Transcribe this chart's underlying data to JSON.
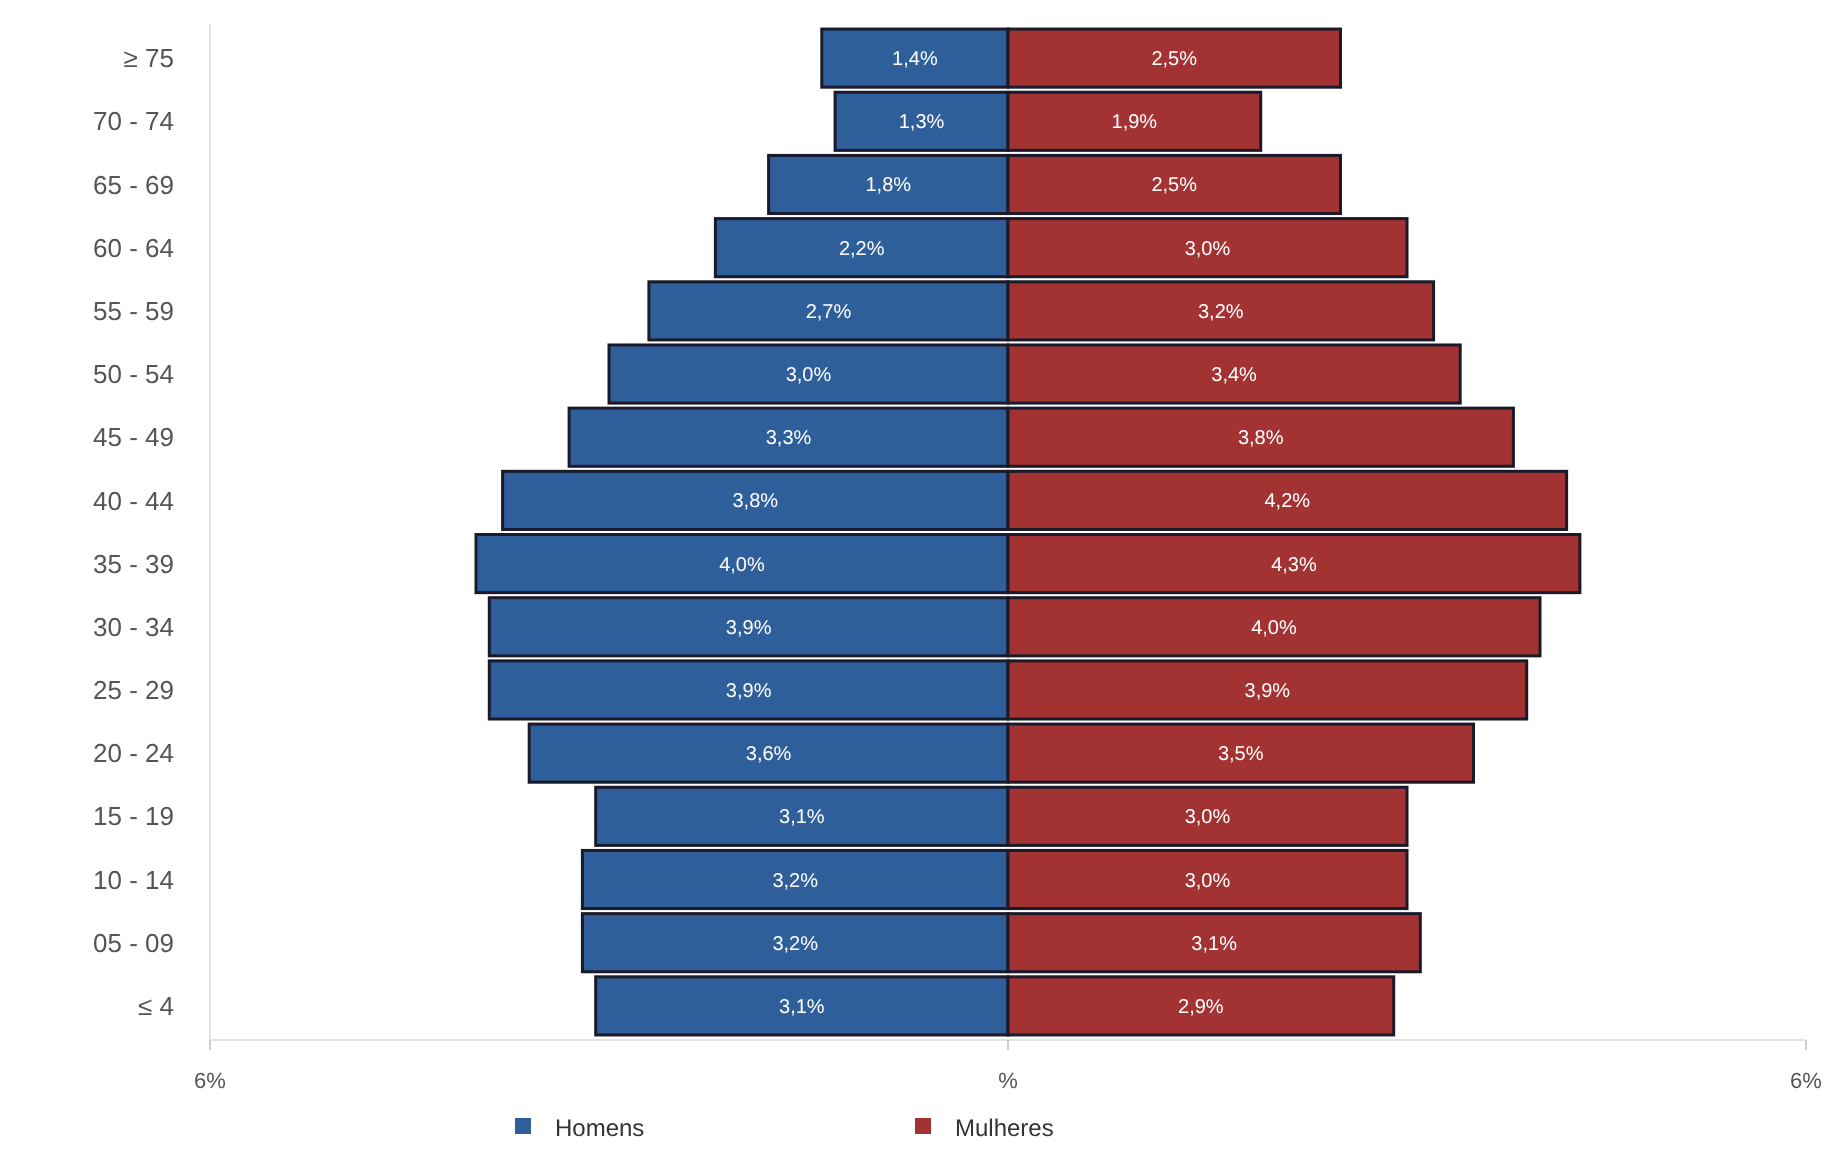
{
  "chart_data": {
    "type": "bar",
    "orientation": "horizontal",
    "categories": [
      "≥ 75",
      "70 - 74",
      "65 - 69",
      "60 - 64",
      "55 - 59",
      "50 - 54",
      "45 - 49",
      "40 - 44",
      "35 - 39",
      "30 - 34",
      "25 - 29",
      "20 - 24",
      "15 - 19",
      "10 - 14",
      "05 - 09",
      "≤ 4"
    ],
    "series": [
      {
        "name": "Homens",
        "color": "#2f5f9a",
        "base": [
          -1.4,
          -1.3,
          -1.8,
          -2.2,
          -2.7,
          -3.0,
          -3.3,
          -3.8,
          -4.0,
          -3.9,
          -3.9,
          -3.6,
          -3.1,
          -3.2,
          -3.2,
          -3.1
        ],
        "values": [
          1.4,
          1.3,
          1.8,
          2.2,
          2.7,
          3.0,
          3.3,
          3.8,
          4.0,
          3.9,
          3.9,
          3.6,
          3.1,
          3.2,
          3.2,
          3.1
        ],
        "value_labels": [
          "1,4%",
          "1,3%",
          "1,8%",
          "2,2%",
          "2,7%",
          "3,0%",
          "3,3%",
          "3,8%",
          "4,0%",
          "3,9%",
          "3,9%",
          "3,6%",
          "3,1%",
          "3,2%",
          "3,2%",
          "3,1%"
        ]
      },
      {
        "name": "Mulheres",
        "color": "#a33232",
        "values": [
          2.5,
          1.9,
          2.5,
          3.0,
          3.2,
          3.4,
          3.8,
          4.2,
          4.3,
          4.0,
          3.9,
          3.5,
          3.0,
          3.0,
          3.1,
          2.9
        ],
        "value_labels": [
          "2,5%",
          "1,9%",
          "2,5%",
          "3,0%",
          "3,2%",
          "3,4%",
          "3,8%",
          "4,2%",
          "4,3%",
          "4,0%",
          "3,9%",
          "3,5%",
          "3,0%",
          "3,0%",
          "3,1%",
          "2,9%"
        ]
      }
    ],
    "xlim": [
      -6,
      6
    ],
    "xticks": [
      {
        "value": -6,
        "label": "6%"
      },
      {
        "value": 0,
        "label": "%"
      },
      {
        "value": 6,
        "label": "6%"
      }
    ],
    "legend": "bottom"
  }
}
